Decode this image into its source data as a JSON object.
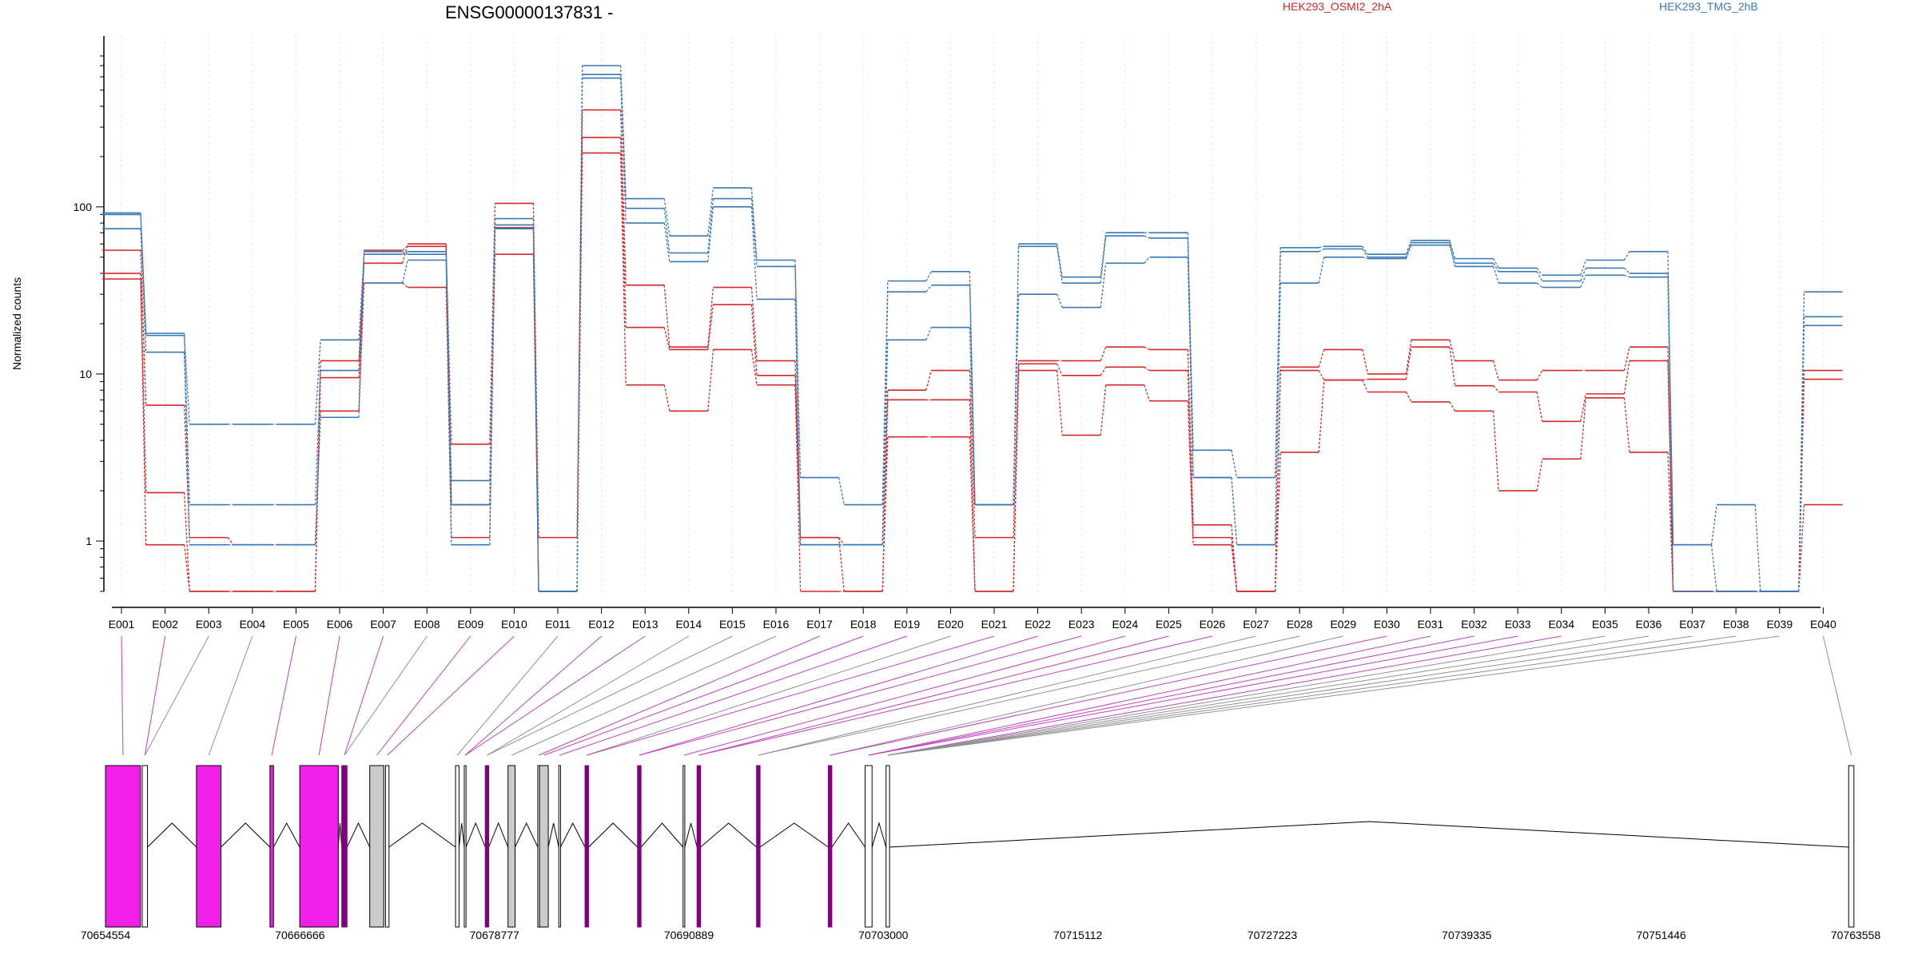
{
  "chart_data": {
    "type": "line",
    "title": "ENSG00000137831 -",
    "ylabel": "Normalized counts",
    "yscale": "log",
    "ylim": [
      0.5,
      800
    ],
    "yticks": [
      "1",
      "10",
      "100"
    ],
    "grid": "vertical-dashed",
    "legend": "top-right",
    "colors": {
      "HEK293_OSMI2_2hA": "#d62728",
      "HEK293_TMG_2hB": "#3a78b5"
    },
    "legend_entries": [
      "HEK293_OSMI2_2hA",
      "HEK293_TMG_2hB"
    ],
    "exons": [
      "E001",
      "E002",
      "E003",
      "E004",
      "E005",
      "E006",
      "E007",
      "E008",
      "E009",
      "E010",
      "E011",
      "E012",
      "E013",
      "E014",
      "E015",
      "E016",
      "E017",
      "E018",
      "E019",
      "E020",
      "E021",
      "E022",
      "E023",
      "E024",
      "E025",
      "E026",
      "E027",
      "E028",
      "E029",
      "E030",
      "E031",
      "E032",
      "E033",
      "E034",
      "E035",
      "E036",
      "E037",
      "E038",
      "E039",
      "E040"
    ],
    "series": [
      {
        "group": "HEK293_OSMI2_2hA",
        "values": [
          55,
          6.5,
          1.05,
          0.95,
          0.95,
          6,
          55,
          58,
          3.8,
          105,
          1.05,
          380,
          34,
          14.5,
          33,
          12,
          1.05,
          0.95,
          8,
          10.5,
          1.05,
          12,
          12,
          14.5,
          14,
          1.25,
          0.5,
          11,
          14,
          10,
          16,
          12,
          9.2,
          10.5,
          10.5,
          14.5,
          0.5,
          0.5,
          0.5,
          10.5
        ]
      },
      {
        "group": "HEK293_OSMI2_2hA",
        "values": [
          40,
          1.95,
          0.5,
          0.5,
          0.5,
          12,
          46,
          60,
          1.65,
          52,
          0.5,
          260,
          19,
          14,
          26,
          9.8,
          1.05,
          0.5,
          7,
          7,
          0.5,
          11.5,
          9.8,
          11,
          10.5,
          1.05,
          0.5,
          10.5,
          9.2,
          9.3,
          14.5,
          8.5,
          7.8,
          5.2,
          7.6,
          12,
          0.5,
          0.5,
          0.5,
          9.3
        ]
      },
      {
        "group": "HEK293_OSMI2_2hA",
        "values": [
          37,
          0.95,
          0.5,
          0.5,
          0.5,
          9.5,
          35,
          33,
          1.05,
          75,
          0.5,
          210,
          8.6,
          6,
          14,
          8.6,
          0.5,
          0.5,
          4.2,
          4.2,
          0.5,
          10.5,
          4.3,
          8.6,
          6.9,
          0.95,
          0.5,
          3.4,
          9.2,
          7.8,
          6.8,
          6,
          2,
          3.1,
          7.2,
          3.4,
          0.5,
          0.5,
          0.5,
          1.65
        ]
      },
      {
        "group": "HEK293_TMG_2hB",
        "values": [
          92,
          17,
          5,
          5,
          5,
          16,
          52,
          54,
          2.3,
          85,
          0.5,
          700,
          112,
          67,
          130,
          48,
          2.4,
          1.65,
          36,
          41,
          1.65,
          60,
          38,
          70,
          70,
          3.5,
          2.4,
          57,
          58,
          52,
          63,
          49,
          43,
          39,
          48,
          54,
          0.95,
          1.65,
          0.5,
          31
        ]
      },
      {
        "group": "HEK293_TMG_2hB",
        "values": [
          90,
          17.5,
          1.65,
          1.65,
          1.65,
          10.5,
          54,
          52,
          1.65,
          78,
          0.5,
          620,
          98,
          53,
          112,
          44,
          0.95,
          0.95,
          31,
          34,
          1.65,
          58,
          35,
          67,
          65,
          2.4,
          0.95,
          54,
          56,
          50,
          61,
          46,
          41,
          36,
          43,
          40,
          0.95,
          0.5,
          0.5,
          22
        ]
      },
      {
        "group": "HEK293_TMG_2hB",
        "values": [
          74,
          13.5,
          0.95,
          0.95,
          0.95,
          5.5,
          35,
          48,
          0.95,
          74,
          0.5,
          590,
          80,
          47,
          100,
          28,
          0.95,
          0.95,
          16,
          19,
          1.65,
          30,
          25,
          46,
          50,
          2.4,
          0.95,
          35,
          50,
          49,
          59,
          44,
          35,
          33,
          39,
          38,
          0.5,
          0.5,
          0.5,
          19.5
        ]
      }
    ]
  },
  "gene_model": {
    "coord_labels": [
      "70654554",
      "70666666",
      "70678777",
      "70690889",
      "70703000",
      "70715112",
      "70727223",
      "70739335",
      "70751446",
      "70763558"
    ],
    "exon_colors": {
      "significant": "#f020e8",
      "normal": "#ffffff",
      "gray": "#cccccc",
      "purple_line": "#800080"
    }
  }
}
